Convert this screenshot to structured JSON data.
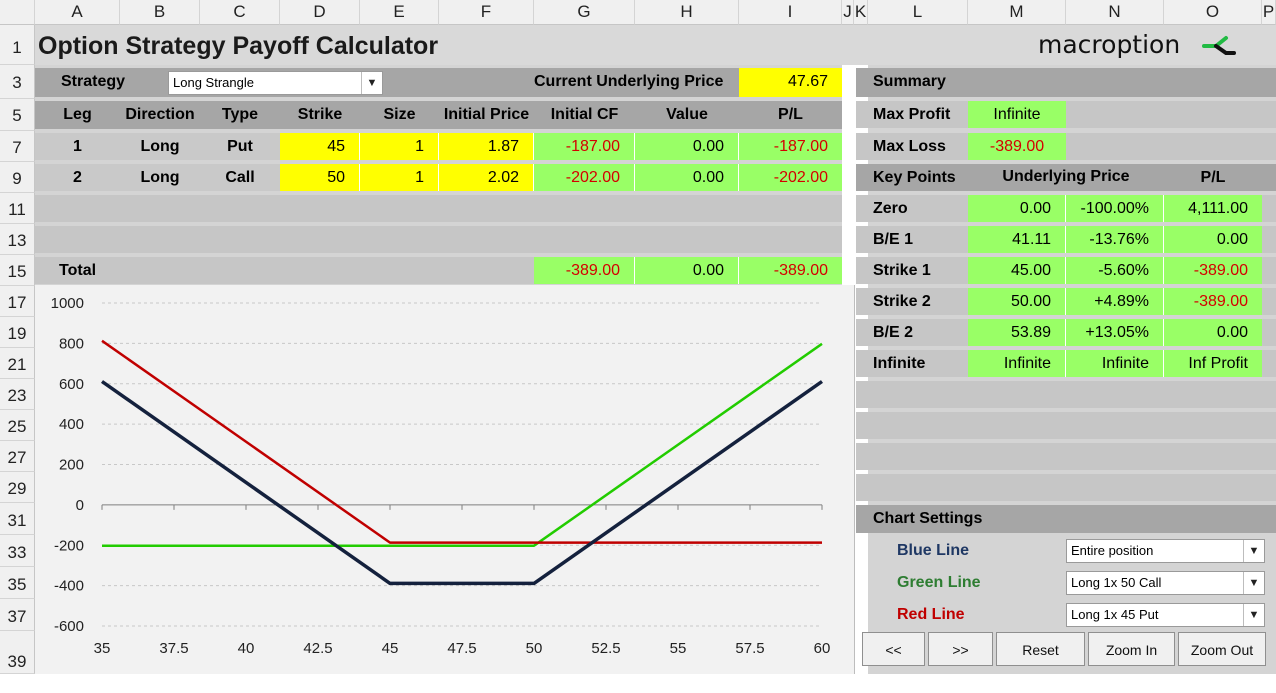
{
  "columns": [
    "A",
    "B",
    "C",
    "D",
    "E",
    "F",
    "G",
    "H",
    "I",
    "J",
    "K",
    "L",
    "M",
    "N",
    "O",
    "P"
  ],
  "rows": [
    "1",
    "3",
    "5",
    "7",
    "9",
    "11",
    "13",
    "15",
    "17",
    "19",
    "21",
    "23",
    "25",
    "27",
    "29",
    "31",
    "33",
    "35",
    "37",
    "39"
  ],
  "title": "Option Strategy Payoff Calculator",
  "brand": "macroption",
  "colors": {
    "yellow": "#ffff00",
    "green": "#99ff66",
    "blue_line": "#14213d",
    "green_line": "#22cc00",
    "red_line": "#c00000"
  },
  "strategy": {
    "label": "Strategy",
    "value": "Long Strangle",
    "dropdown_icon": "chevron-down-icon"
  },
  "underlying": {
    "label": "Current Underlying Price",
    "value": "47.67"
  },
  "legs_header": [
    "Leg",
    "Direction",
    "Type",
    "Strike",
    "Size",
    "Initial Price",
    "Initial CF",
    "Value",
    "P/L"
  ],
  "legs": [
    {
      "leg": "1",
      "direction": "Long",
      "type": "Put",
      "strike": "45",
      "size": "1",
      "price": "1.87",
      "cf": "-187.00",
      "value": "0.00",
      "pl": "-187.00"
    },
    {
      "leg": "2",
      "direction": "Long",
      "type": "Call",
      "strike": "50",
      "size": "1",
      "price": "2.02",
      "cf": "-202.00",
      "value": "0.00",
      "pl": "-202.00"
    }
  ],
  "total": {
    "label": "Total",
    "cf": "-389.00",
    "value": "0.00",
    "pl": "-389.00"
  },
  "summary": {
    "title": "Summary",
    "max_profit_label": "Max Profit",
    "max_profit": "Infinite",
    "max_loss_label": "Max Loss",
    "max_loss": "-389.00"
  },
  "key_points": {
    "title": "Key Points",
    "col_underlying": "Underlying Price",
    "col_pl": "P/L",
    "rows": [
      {
        "label": "Zero",
        "price": "0.00",
        "pct": "-100.00%",
        "pl": "4,111.00",
        "pl_red": false
      },
      {
        "label": "B/E 1",
        "price": "41.11",
        "pct": "-13.76%",
        "pl": "0.00",
        "pl_red": false
      },
      {
        "label": "Strike 1",
        "price": "45.00",
        "pct": "-5.60%",
        "pl": "-389.00",
        "pl_red": true
      },
      {
        "label": "Strike 2",
        "price": "50.00",
        "pct": "+4.89%",
        "pl": "-389.00",
        "pl_red": true
      },
      {
        "label": "B/E 2",
        "price": "53.89",
        "pct": "+13.05%",
        "pl": "0.00",
        "pl_red": false
      },
      {
        "label": "Infinite",
        "price": "Infinite",
        "pct": "Infinite",
        "pl": "Inf Profit",
        "pl_red": false
      }
    ]
  },
  "chart_settings": {
    "title": "Chart Settings",
    "blue_label": "Blue Line",
    "blue_value": "Entire position",
    "green_label": "Green Line",
    "green_value": "Long 1x 50 Call",
    "red_label": "Red Line",
    "red_value": "Long 1x 45 Put"
  },
  "buttons": {
    "prev": "<<",
    "next": ">>",
    "reset": "Reset",
    "zoom_in": "Zoom In",
    "zoom_out": "Zoom Out"
  },
  "chart_data": {
    "type": "line",
    "x_ticks": [
      "35",
      "37.5",
      "40",
      "42.5",
      "45",
      "47.5",
      "50",
      "52.5",
      "55",
      "57.5",
      "60"
    ],
    "y_ticks": [
      "1000",
      "800",
      "600",
      "400",
      "200",
      "0",
      "-200",
      "-400",
      "-600"
    ],
    "xlim": [
      35,
      60
    ],
    "ylim": [
      -600,
      1000
    ],
    "grid": "horizontal dashed",
    "series": [
      {
        "color": "blue_line",
        "x": [
          35,
          45,
          50,
          60
        ],
        "y": [
          611,
          -389,
          -389,
          611
        ]
      },
      {
        "color": "green_line",
        "x": [
          35,
          50,
          60
        ],
        "y": [
          -202,
          -202,
          798
        ]
      },
      {
        "color": "red_line",
        "x": [
          35,
          45,
          60
        ],
        "y": [
          813,
          -187,
          -187
        ]
      }
    ]
  }
}
